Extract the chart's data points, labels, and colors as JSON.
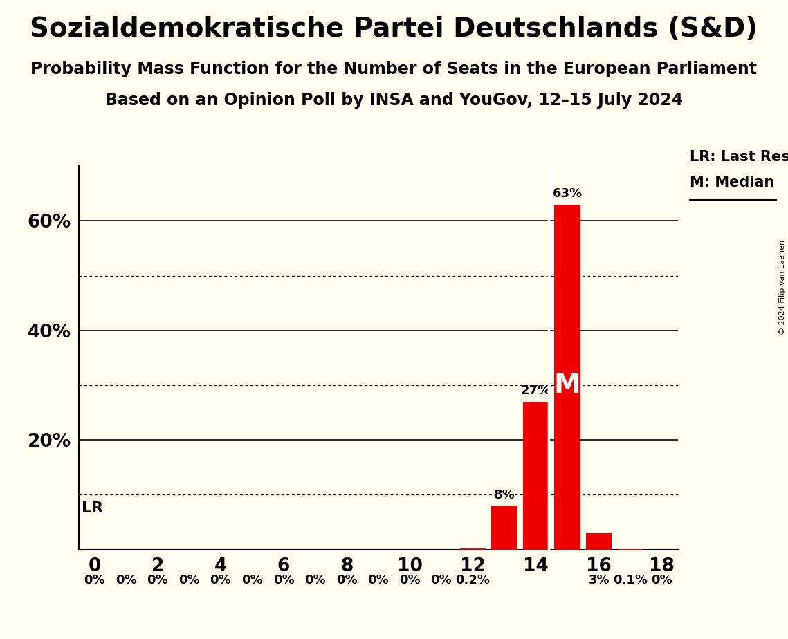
{
  "title": "Sozialdemokratische Partei Deutschlands (S&D)",
  "subtitle1": "Probability Mass Function for the Number of Seats in the European Parliament",
  "subtitle2": "Based on an Opinion Poll by INSA and YouGov, 12–15 July 2024",
  "copyright": "© 2024 Filip van Laenen",
  "seats": [
    0,
    1,
    2,
    3,
    4,
    5,
    6,
    7,
    8,
    9,
    10,
    11,
    12,
    13,
    14,
    15,
    16,
    17,
    18
  ],
  "probabilities": [
    0.0,
    0.0,
    0.0,
    0.0,
    0.0,
    0.0,
    0.0,
    0.0,
    0.0,
    0.0,
    0.0,
    0.0,
    0.2,
    8.0,
    27.0,
    63.0,
    3.0,
    0.1,
    0.0
  ],
  "bar_color": "#ee0000",
  "background_color": "#fffff0",
  "last_result_seat": 14,
  "median_seat": 15,
  "xlim": [
    -0.5,
    18.5
  ],
  "ylim": [
    0,
    70
  ],
  "yticks": [
    0,
    10,
    20,
    30,
    40,
    50,
    60,
    70
  ],
  "xticks": [
    0,
    2,
    4,
    6,
    8,
    10,
    12,
    14,
    16,
    18
  ],
  "solid_gridlines": [
    20,
    40,
    60
  ],
  "dotted_gridlines": [
    10,
    30,
    50
  ],
  "lr_label": "LR",
  "lr_legend": "LR: Last Result",
  "m_legend": "M: Median",
  "title_fontsize": 28,
  "subtitle_fontsize": 17,
  "bar_label_fontsize": 13,
  "tick_fontsize": 19,
  "ytick_show": [
    20,
    40,
    60
  ]
}
